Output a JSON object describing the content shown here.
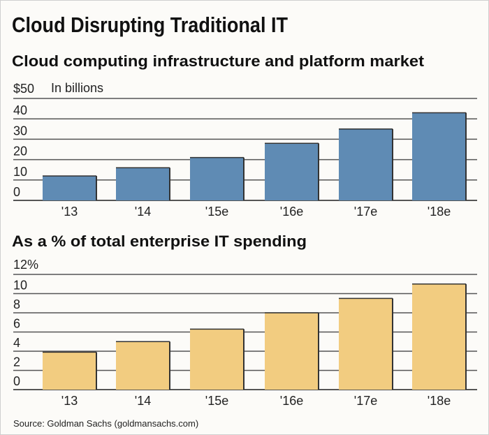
{
  "title": "Cloud Disrupting Traditional IT",
  "source": "Source: Goldman Sachs (goldmansachs.com)",
  "chart_data": [
    {
      "type": "bar",
      "title": "Cloud computing infrastructure and platform market",
      "unit_label": "In billions",
      "categories": [
        "'13",
        "'14",
        "'15e",
        "'16e",
        "'17e",
        "'18e"
      ],
      "values": [
        12,
        16,
        21,
        28,
        35,
        43
      ],
      "yticks": [
        "0",
        "10",
        "20",
        "30",
        "40",
        "$50"
      ],
      "ylim": [
        0,
        50
      ],
      "grid": true,
      "color": "#5f8bb4"
    },
    {
      "type": "bar",
      "title": "As a % of total enterprise IT spending",
      "categories": [
        "'13",
        "'14",
        "'15e",
        "'16e",
        "'17e",
        "'18e"
      ],
      "values": [
        3.9,
        5.0,
        6.3,
        8.0,
        9.5,
        11.0
      ],
      "yticks": [
        "0",
        "2",
        "4",
        "6",
        "8",
        "10",
        "12%"
      ],
      "ylim": [
        0,
        12
      ],
      "grid": true,
      "color": "#f2cc80"
    }
  ]
}
